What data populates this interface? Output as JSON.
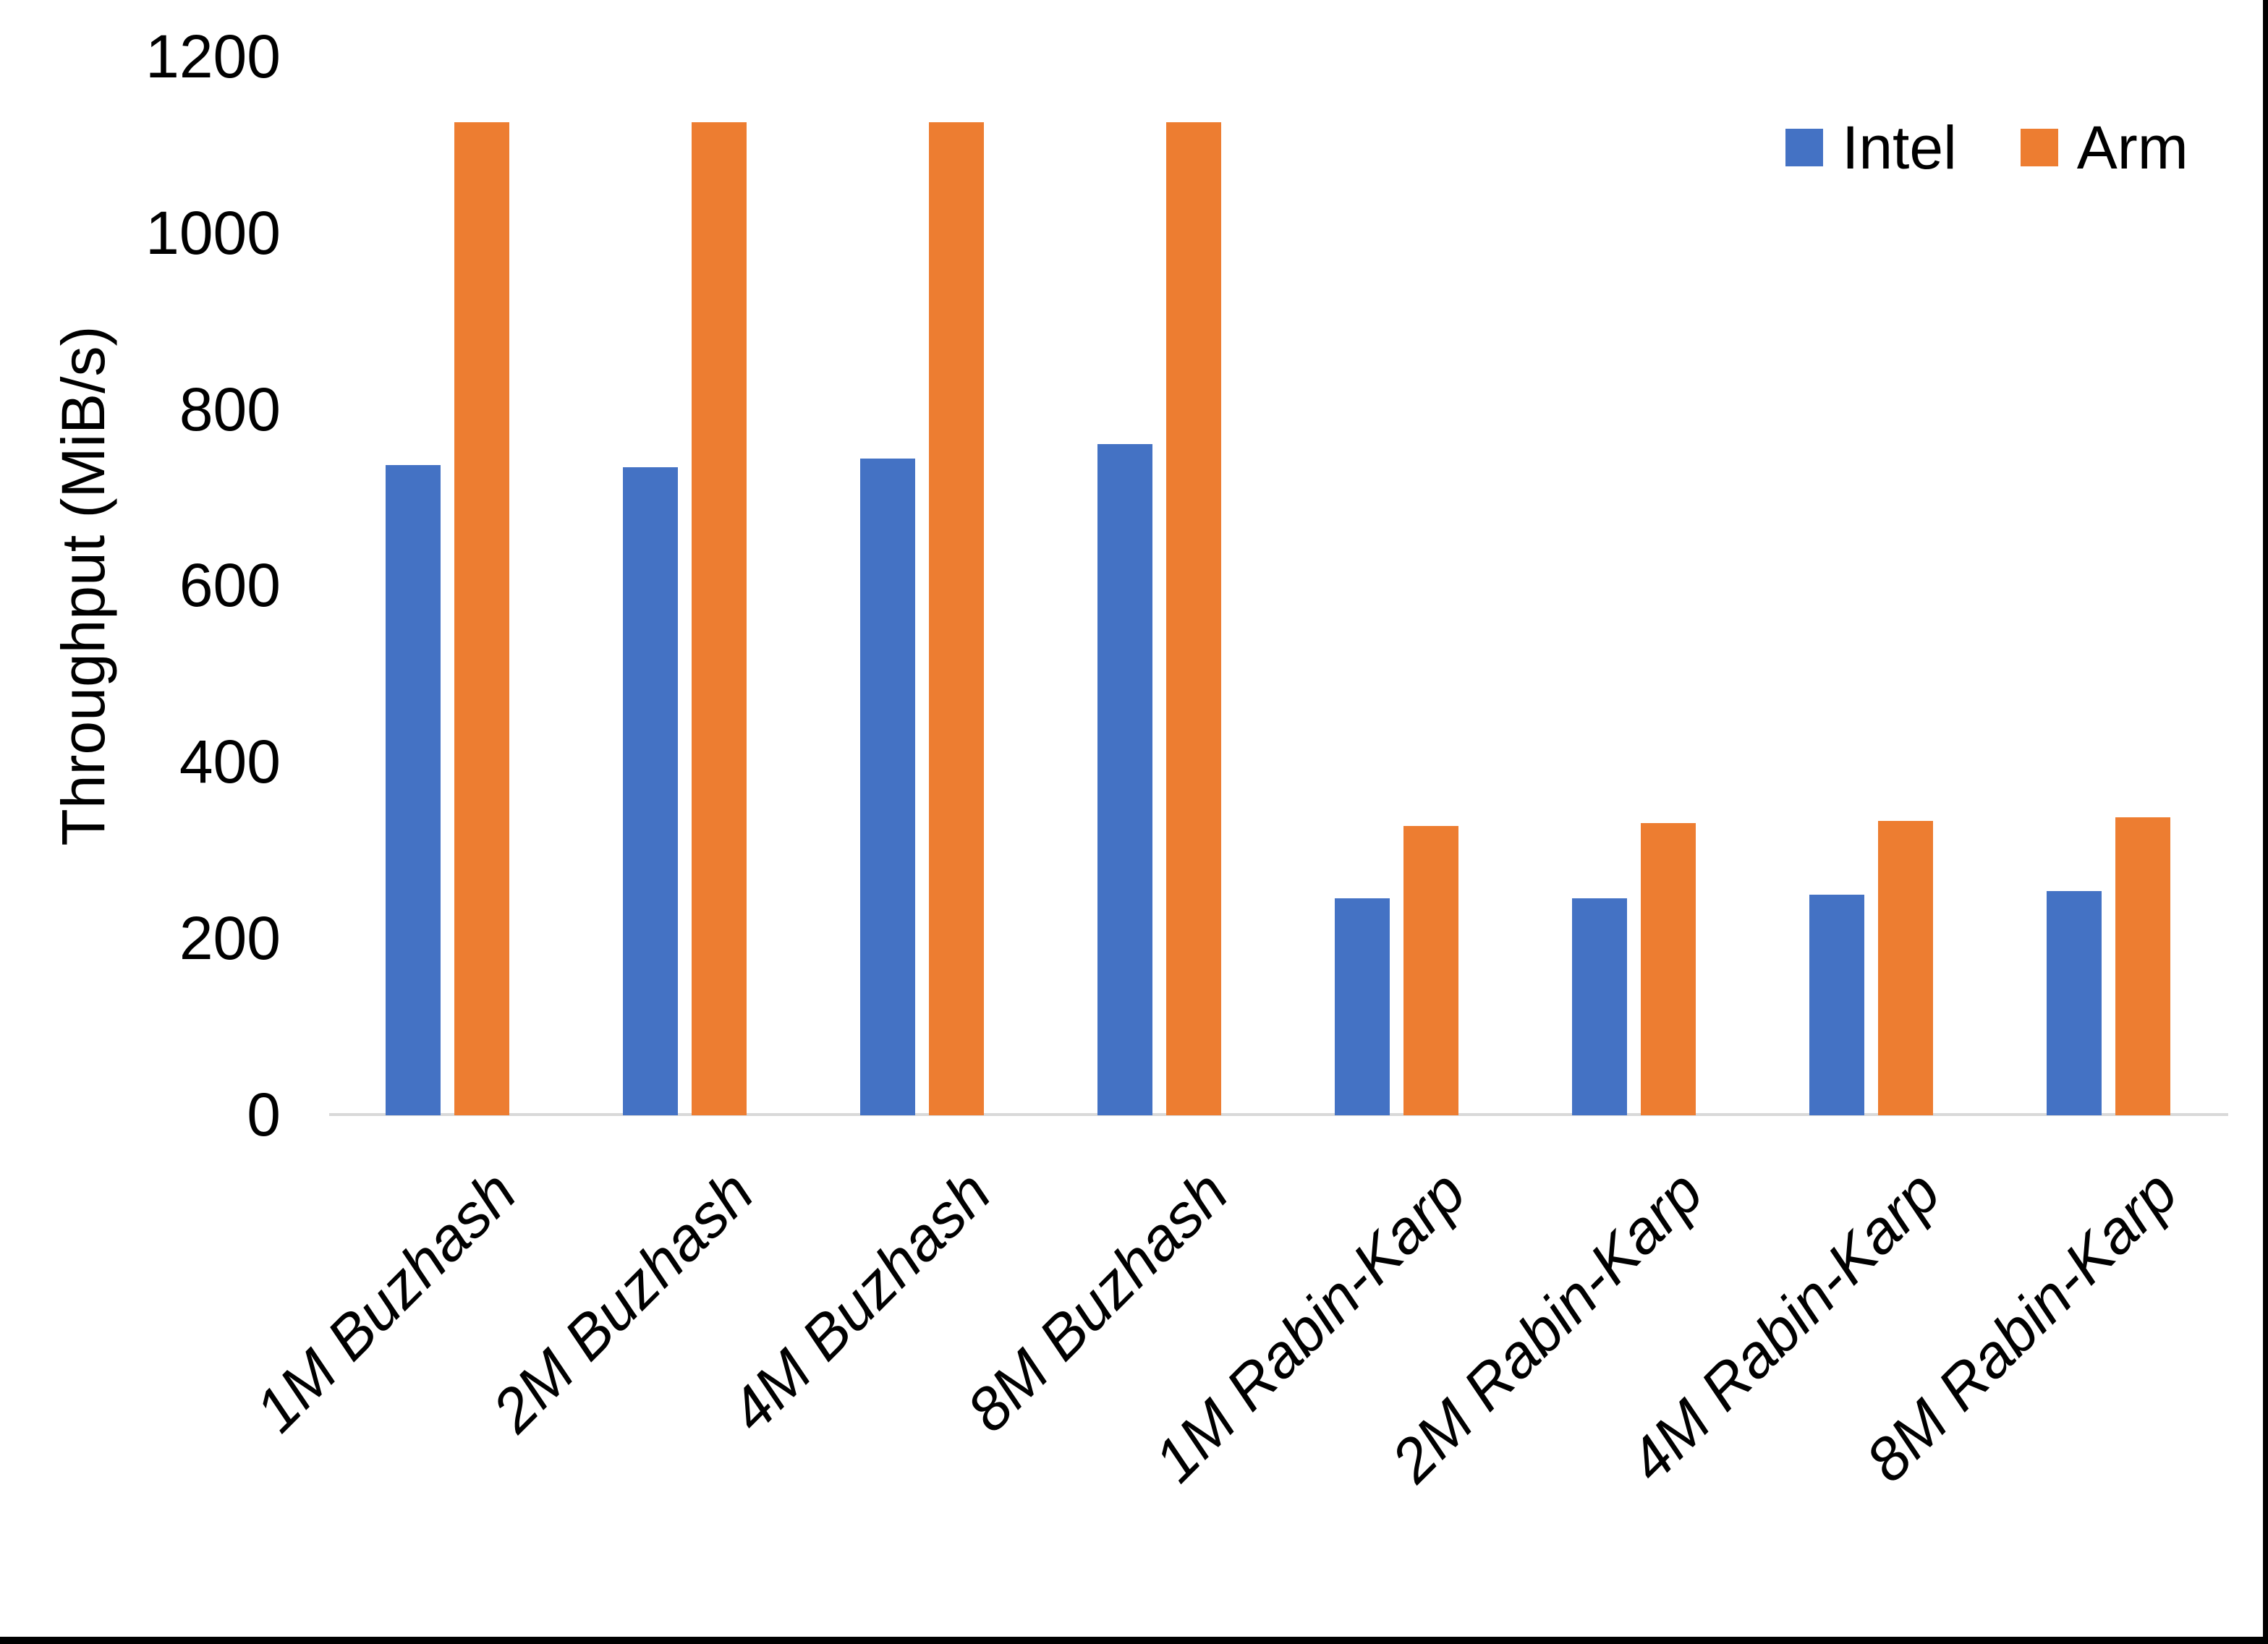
{
  "chart_data": {
    "type": "bar",
    "title": "",
    "ylabel": "Throughput (MiB/s)",
    "xlabel": "",
    "categories": [
      "1M Buzhash",
      "2M Buzhash",
      "4M Buzhash",
      "8M Buzhash",
      "1M Rabin-Karp",
      "2M Rabin-Karp",
      "4M Rabin-Karp",
      "8M Rabin-Karp"
    ],
    "series": [
      {
        "name": "Intel",
        "color": "#4472C4",
        "values": [
          737,
          735,
          745,
          761,
          246,
          246,
          250,
          254
        ]
      },
      {
        "name": "Arm",
        "color": "#ED7D31",
        "values": [
          1126,
          1126,
          1126,
          1126,
          328,
          331,
          334,
          338
        ]
      }
    ],
    "yticks": [
      0,
      200,
      400,
      600,
      800,
      1000,
      1200
    ],
    "ylim": [
      0,
      1200
    ],
    "grid": false,
    "legend_position": "top-right",
    "axis_line_color": "#D9D9D9",
    "text_color": "#000000",
    "background_color": "#FFFFFF",
    "border_color": "#000000"
  }
}
